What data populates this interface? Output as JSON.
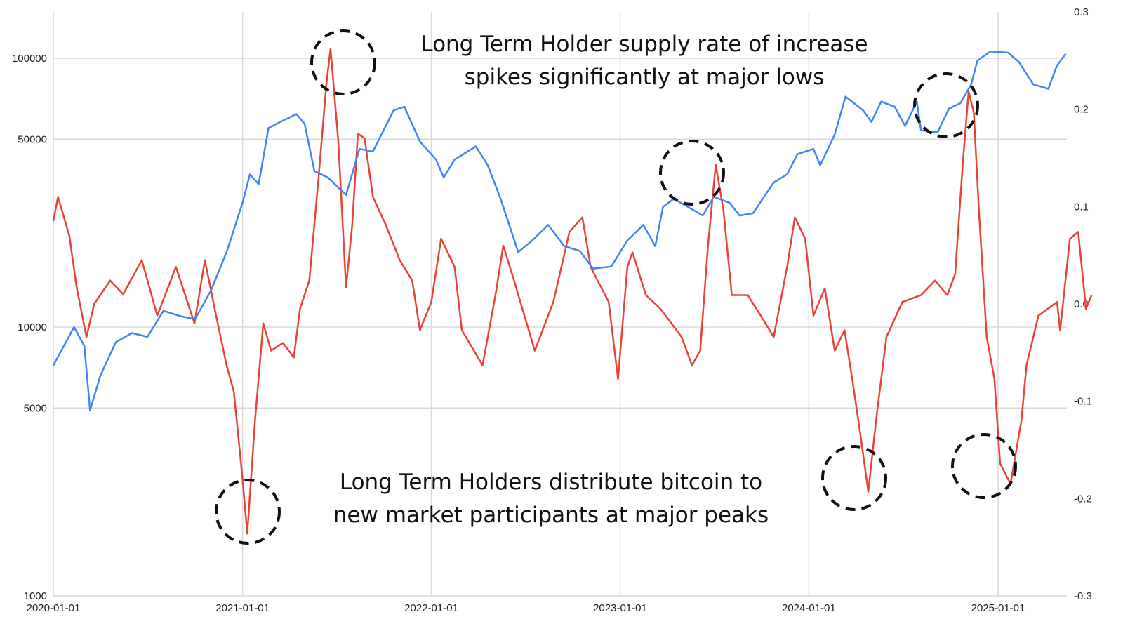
{
  "chart_data": {
    "type": "line",
    "title": "",
    "xlabel": "",
    "ylabel": "",
    "x_range": [
      "2020-01-01",
      "2025-05-12"
    ],
    "x_ticks": [
      "2020-01-01",
      "2021-01-01",
      "2022-01-01",
      "2023-01-01",
      "2024-01-01",
      "2025-01-01"
    ],
    "y_left": {
      "scale": "log",
      "range": [
        1000,
        150000
      ],
      "ticks": [
        "1000",
        "5000",
        "10000",
        "50000",
        "100000"
      ]
    },
    "y_right": {
      "scale": "linear",
      "range": [
        -0.3,
        0.3
      ],
      "ticks": [
        "0.3",
        "0.2",
        "0.1",
        "0.0",
        "-0.1",
        "-0.2",
        "-0.3"
      ]
    },
    "grid": true,
    "legend": "none",
    "series": [
      {
        "axis": "left",
        "color": "#4285f4",
        "points": [
          [
            "2020-01-01",
            7200
          ],
          [
            "2020-02-10",
            10000
          ],
          [
            "2020-03-01",
            8500
          ],
          [
            "2020-03-12",
            4900
          ],
          [
            "2020-04-01",
            6600
          ],
          [
            "2020-05-01",
            8800
          ],
          [
            "2020-06-01",
            9500
          ],
          [
            "2020-07-01",
            9200
          ],
          [
            "2020-08-01",
            11500
          ],
          [
            "2020-09-01",
            11000
          ],
          [
            "2020-10-01",
            10700
          ],
          [
            "2020-11-01",
            13700
          ],
          [
            "2020-12-01",
            19000
          ],
          [
            "2021-01-01",
            29000
          ],
          [
            "2021-01-15",
            37000
          ],
          [
            "2021-02-01",
            34000
          ],
          [
            "2021-02-20",
            55000
          ],
          [
            "2021-03-15",
            58000
          ],
          [
            "2021-04-15",
            62000
          ],
          [
            "2021-05-01",
            57000
          ],
          [
            "2021-05-20",
            38000
          ],
          [
            "2021-06-15",
            36000
          ],
          [
            "2021-07-20",
            31000
          ],
          [
            "2021-08-15",
            46000
          ],
          [
            "2021-09-10",
            45000
          ],
          [
            "2021-10-20",
            64000
          ],
          [
            "2021-11-10",
            66000
          ],
          [
            "2021-12-10",
            49000
          ],
          [
            "2022-01-10",
            42000
          ],
          [
            "2022-01-25",
            36000
          ],
          [
            "2022-02-15",
            42000
          ],
          [
            "2022-03-28",
            47000
          ],
          [
            "2022-04-20",
            40000
          ],
          [
            "2022-05-15",
            30000
          ],
          [
            "2022-06-18",
            19000
          ],
          [
            "2022-07-15",
            21000
          ],
          [
            "2022-08-15",
            24000
          ],
          [
            "2022-09-15",
            20000
          ],
          [
            "2022-10-15",
            19200
          ],
          [
            "2022-11-10",
            16500
          ],
          [
            "2022-12-15",
            16800
          ],
          [
            "2023-01-15",
            21000
          ],
          [
            "2023-02-15",
            24000
          ],
          [
            "2023-03-10",
            20000
          ],
          [
            "2023-03-25",
            28000
          ],
          [
            "2023-04-15",
            30000
          ],
          [
            "2023-06-10",
            26000
          ],
          [
            "2023-07-01",
            30500
          ],
          [
            "2023-08-01",
            29000
          ],
          [
            "2023-08-20",
            26000
          ],
          [
            "2023-09-15",
            26500
          ],
          [
            "2023-10-25",
            34500
          ],
          [
            "2023-11-20",
            37000
          ],
          [
            "2023-12-10",
            44000
          ],
          [
            "2024-01-10",
            46000
          ],
          [
            "2024-01-23",
            40000
          ],
          [
            "2024-02-20",
            52000
          ],
          [
            "2024-03-12",
            72000
          ],
          [
            "2024-04-15",
            64000
          ],
          [
            "2024-05-01",
            58000
          ],
          [
            "2024-05-20",
            69000
          ],
          [
            "2024-06-15",
            66000
          ],
          [
            "2024-07-05",
            56000
          ],
          [
            "2024-07-28",
            69000
          ],
          [
            "2024-08-05",
            54000
          ],
          [
            "2024-09-06",
            53000
          ],
          [
            "2024-09-28",
            65000
          ],
          [
            "2024-10-20",
            68000
          ],
          [
            "2024-11-10",
            80000
          ],
          [
            "2024-11-22",
            98000
          ],
          [
            "2024-12-17",
            106000
          ],
          [
            "2025-01-20",
            105000
          ],
          [
            "2025-02-10",
            97000
          ],
          [
            "2025-03-10",
            80000
          ],
          [
            "2025-04-08",
            77000
          ],
          [
            "2025-04-25",
            94000
          ],
          [
            "2025-05-12",
            104000
          ]
        ]
      },
      {
        "axis": "right",
        "color": "#ea4335",
        "points": [
          [
            "2020-01-01",
            0.085
          ],
          [
            "2020-01-10",
            0.11
          ],
          [
            "2020-02-01",
            0.07
          ],
          [
            "2020-02-15",
            0.017
          ],
          [
            "2020-03-05",
            -0.034
          ],
          [
            "2020-03-20",
            0.0
          ],
          [
            "2020-04-20",
            0.024
          ],
          [
            "2020-05-15",
            0.01
          ],
          [
            "2020-06-20",
            0.045
          ],
          [
            "2020-07-20",
            -0.012
          ],
          [
            "2020-08-25",
            0.038
          ],
          [
            "2020-09-30",
            -0.02
          ],
          [
            "2020-10-20",
            0.045
          ],
          [
            "2020-11-10",
            -0.01
          ],
          [
            "2020-12-01",
            -0.063
          ],
          [
            "2020-12-15",
            -0.09
          ],
          [
            "2021-01-01",
            -0.18
          ],
          [
            "2021-01-10",
            -0.236
          ],
          [
            "2021-01-25",
            -0.12
          ],
          [
            "2021-02-10",
            -0.02
          ],
          [
            "2021-02-25",
            -0.048
          ],
          [
            "2021-03-20",
            -0.04
          ],
          [
            "2021-04-10",
            -0.055
          ],
          [
            "2021-04-22",
            -0.005
          ],
          [
            "2021-05-10",
            0.024
          ],
          [
            "2021-05-28",
            0.13
          ],
          [
            "2021-06-12",
            0.226
          ],
          [
            "2021-06-20",
            0.262
          ],
          [
            "2021-07-05",
            0.168
          ],
          [
            "2021-07-20",
            0.017
          ],
          [
            "2021-08-01",
            0.081
          ],
          [
            "2021-08-12",
            0.175
          ],
          [
            "2021-08-25",
            0.17
          ],
          [
            "2021-09-10",
            0.11
          ],
          [
            "2021-10-05",
            0.081
          ],
          [
            "2021-11-01",
            0.045
          ],
          [
            "2021-11-25",
            0.024
          ],
          [
            "2021-12-10",
            -0.027
          ],
          [
            "2022-01-01",
            0.002
          ],
          [
            "2022-01-20",
            0.067
          ],
          [
            "2022-02-15",
            0.038
          ],
          [
            "2022-03-01",
            -0.027
          ],
          [
            "2022-04-10",
            -0.063
          ],
          [
            "2022-05-05",
            0.009
          ],
          [
            "2022-05-20",
            0.06
          ],
          [
            "2022-06-10",
            0.024
          ],
          [
            "2022-07-20",
            -0.048
          ],
          [
            "2022-08-25",
            0.002
          ],
          [
            "2022-09-25",
            0.074
          ],
          [
            "2022-10-20",
            0.089
          ],
          [
            "2022-11-05",
            0.038
          ],
          [
            "2022-12-10",
            0.002
          ],
          [
            "2022-12-28",
            -0.077
          ],
          [
            "2023-01-15",
            0.038
          ],
          [
            "2023-01-25",
            0.053
          ],
          [
            "2023-02-20",
            0.009
          ],
          [
            "2023-03-20",
            -0.005
          ],
          [
            "2023-04-30",
            -0.034
          ],
          [
            "2023-05-20",
            -0.063
          ],
          [
            "2023-06-05",
            -0.048
          ],
          [
            "2023-06-20",
            0.06
          ],
          [
            "2023-07-05",
            0.143
          ],
          [
            "2023-07-20",
            0.096
          ],
          [
            "2023-08-05",
            0.009
          ],
          [
            "2023-09-05",
            0.009
          ],
          [
            "2023-09-30",
            -0.012
          ],
          [
            "2023-10-25",
            -0.034
          ],
          [
            "2023-11-20",
            0.038
          ],
          [
            "2023-12-05",
            0.089
          ],
          [
            "2023-12-25",
            0.067
          ],
          [
            "2024-01-10",
            -0.012
          ],
          [
            "2024-02-01",
            0.016
          ],
          [
            "2024-02-20",
            -0.048
          ],
          [
            "2024-03-10",
            -0.027
          ],
          [
            "2024-03-25",
            -0.077
          ],
          [
            "2024-04-10",
            -0.135
          ],
          [
            "2024-04-25",
            -0.193
          ],
          [
            "2024-05-10",
            -0.12
          ],
          [
            "2024-05-30",
            -0.034
          ],
          [
            "2024-06-30",
            0.002
          ],
          [
            "2024-08-05",
            0.009
          ],
          [
            "2024-09-01",
            0.024
          ],
          [
            "2024-09-25",
            0.009
          ],
          [
            "2024-10-10",
            0.031
          ],
          [
            "2024-10-25",
            0.146
          ],
          [
            "2024-11-05",
            0.218
          ],
          [
            "2024-11-15",
            0.197
          ],
          [
            "2024-11-25",
            0.096
          ],
          [
            "2024-12-10",
            -0.034
          ],
          [
            "2024-12-25",
            -0.077
          ],
          [
            "2025-01-05",
            -0.164
          ],
          [
            "2025-01-25",
            -0.185
          ],
          [
            "2025-02-15",
            -0.12
          ],
          [
            "2025-02-25",
            -0.063
          ],
          [
            "2025-03-20",
            -0.012
          ],
          [
            "2025-04-25",
            0.002
          ],
          [
            "2025-05-01",
            -0.027
          ],
          [
            "2025-05-20",
            0.067
          ],
          [
            "2025-06-05",
            0.074
          ],
          [
            "2025-06-20",
            -0.005
          ],
          [
            "2025-07-01",
            0.009
          ]
        ]
      }
    ],
    "annotations": [
      {
        "text_lines": [
          "Long Term Holder supply rate of increase",
          "spikes significantly at major lows"
        ]
      },
      {
        "text_lines": [
          "Long Term Holders distribute bitcoin to",
          "new market participants at major peaks"
        ]
      }
    ]
  }
}
